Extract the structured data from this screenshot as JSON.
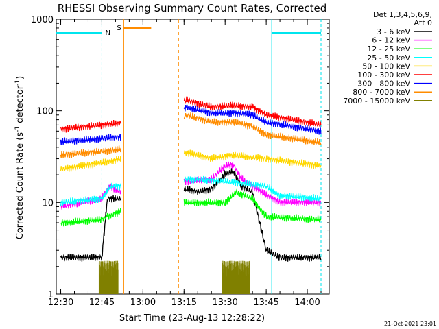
{
  "chart_data": {
    "type": "line",
    "title": "RHESSI Observing Summary Count Rates, Corrected",
    "xlabel": "Start Time (23-Aug-13 12:28:22)",
    "ylabel": "Corrected Count Rate (s",
    "ylabel_sup1": "-1",
    "ylabel_mid": " detector",
    "ylabel_sup2": "-1",
    "ylabel_end": ")",
    "x_scale": "time",
    "x_range": [
      "12:28:22",
      "14:08:00"
    ],
    "x_ticks": [
      "12:30",
      "12:45",
      "13:00",
      "13:15",
      "13:30",
      "13:45",
      "14:00"
    ],
    "y_scale": "log",
    "y_range": [
      1,
      1000
    ],
    "y_ticks": [
      "1",
      "10",
      "100",
      "1000"
    ],
    "legend_header_1": "Det 1,3,4,5,6,9,",
    "legend_header_2": "Att 0",
    "legend_position": "right",
    "footer_timestamp": "21-Oct-2021 23:01",
    "markers": [
      {
        "label": "N",
        "color": "#00e5ee"
      },
      {
        "label": "S",
        "color": "#ff8c00"
      }
    ],
    "series": [
      {
        "name": "3 - 6 keV",
        "color": "#000000",
        "points": [
          [
            "12:30",
            2.5
          ],
          [
            "12:45",
            2.5
          ],
          [
            "12:47",
            11
          ],
          [
            "12:52",
            11
          ],
          [
            "13:16",
            14
          ],
          [
            "13:20",
            13
          ],
          [
            "13:25",
            14
          ],
          [
            "13:30",
            20
          ],
          [
            "13:33",
            22
          ],
          [
            "13:36",
            15
          ],
          [
            "13:40",
            13
          ],
          [
            "13:45",
            3
          ],
          [
            "13:50",
            2.5
          ],
          [
            "14:05",
            2.5
          ]
        ]
      },
      {
        "name": "6 - 12 keV",
        "color": "#ff00ff",
        "points": [
          [
            "12:30",
            9
          ],
          [
            "12:45",
            11
          ],
          [
            "12:48",
            15
          ],
          [
            "12:52",
            13
          ],
          [
            "13:16",
            17
          ],
          [
            "13:25",
            18
          ],
          [
            "13:30",
            25
          ],
          [
            "13:33",
            26
          ],
          [
            "13:36",
            18
          ],
          [
            "13:45",
            12
          ],
          [
            "13:50",
            10
          ],
          [
            "14:05",
            10
          ]
        ]
      },
      {
        "name": "12 - 25 keV",
        "color": "#00ff00",
        "points": [
          [
            "12:30",
            6
          ],
          [
            "12:45",
            6.5
          ],
          [
            "12:47",
            7
          ],
          [
            "12:52",
            8
          ],
          [
            "13:16",
            10
          ],
          [
            "13:30",
            10
          ],
          [
            "13:34",
            13
          ],
          [
            "13:40",
            11
          ],
          [
            "13:45",
            7
          ],
          [
            "14:05",
            6.5
          ]
        ]
      },
      {
        "name": "25 - 50 keV",
        "color": "#00ffff",
        "points": [
          [
            "12:30",
            10
          ],
          [
            "12:45",
            11
          ],
          [
            "12:48",
            15
          ],
          [
            "12:52",
            15
          ],
          [
            "13:16",
            18
          ],
          [
            "13:30",
            17
          ],
          [
            "13:45",
            15
          ],
          [
            "13:50",
            12
          ],
          [
            "14:05",
            11
          ]
        ]
      },
      {
        "name": "50 - 100 keV",
        "color": "#ffd700",
        "points": [
          [
            "12:30",
            23
          ],
          [
            "12:45",
            27
          ],
          [
            "12:52",
            30
          ],
          [
            "13:16",
            35
          ],
          [
            "13:25",
            30
          ],
          [
            "13:33",
            33
          ],
          [
            "13:40",
            31
          ],
          [
            "13:45",
            30
          ],
          [
            "14:05",
            25
          ]
        ]
      },
      {
        "name": "100 - 300 keV",
        "color": "#ff0000",
        "points": [
          [
            "12:30",
            63
          ],
          [
            "12:45",
            70
          ],
          [
            "12:52",
            73
          ],
          [
            "13:16",
            130
          ],
          [
            "13:25",
            110
          ],
          [
            "13:33",
            115
          ],
          [
            "13:40",
            110
          ],
          [
            "13:45",
            90
          ],
          [
            "14:05",
            70
          ]
        ]
      },
      {
        "name": "300 - 800 keV",
        "color": "#0000ff",
        "points": [
          [
            "12:30",
            46
          ],
          [
            "12:45",
            50
          ],
          [
            "12:52",
            52
          ],
          [
            "13:16",
            110
          ],
          [
            "13:25",
            95
          ],
          [
            "13:33",
            95
          ],
          [
            "13:40",
            90
          ],
          [
            "13:45",
            75
          ],
          [
            "14:05",
            60
          ]
        ]
      },
      {
        "name": "800 - 7000 keV",
        "color": "#ff8c00",
        "points": [
          [
            "12:30",
            33
          ],
          [
            "12:45",
            36
          ],
          [
            "12:52",
            38
          ],
          [
            "13:16",
            90
          ],
          [
            "13:25",
            75
          ],
          [
            "13:33",
            75
          ],
          [
            "13:40",
            68
          ],
          [
            "13:45",
            55
          ],
          [
            "14:05",
            45
          ]
        ]
      },
      {
        "name": "7000 - 15000 keV",
        "color": "#808000",
        "points": [
          [
            "12:44",
            1.3
          ],
          [
            "12:51",
            1.3
          ],
          [
            "13:29",
            1.3
          ],
          [
            "13:39",
            1.3
          ]
        ]
      }
    ]
  }
}
